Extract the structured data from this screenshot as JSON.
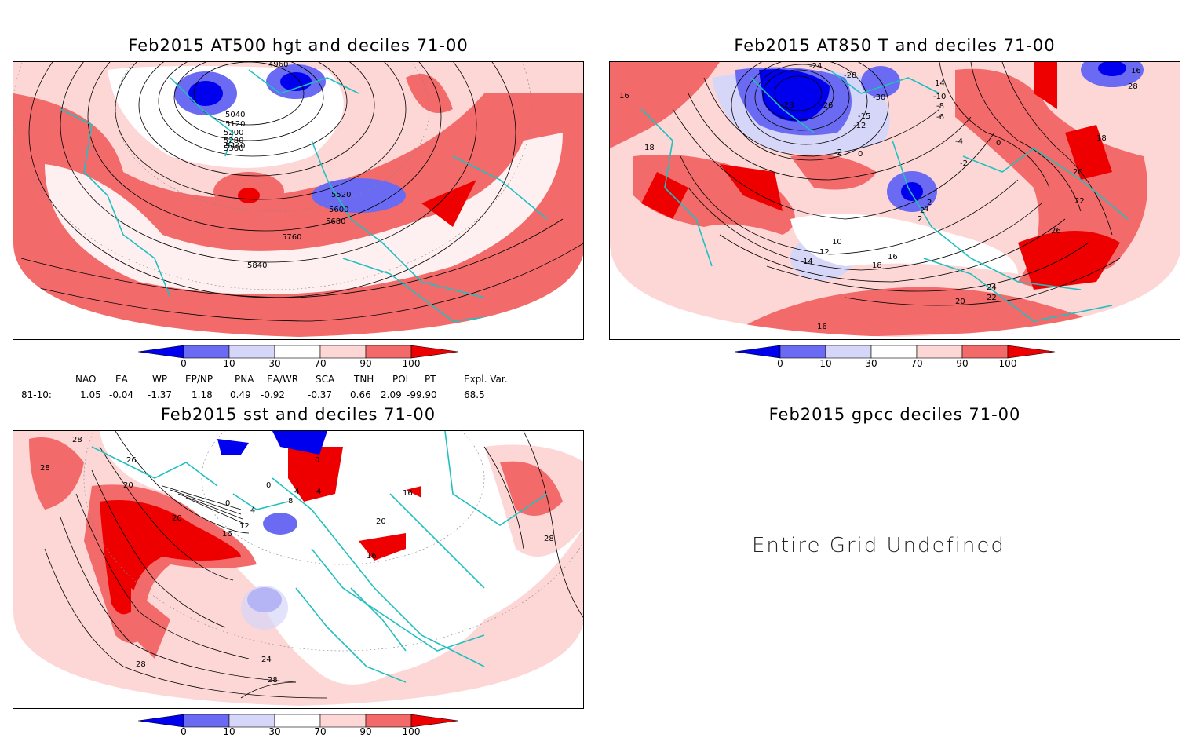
{
  "panels": {
    "hgt500": {
      "title": "Feb2015 AT500 hgt and deciles 71-00",
      "contour_labels": [
        "5040",
        "5120",
        "5200",
        "5280",
        "5360",
        "5440",
        "5520",
        "5600",
        "5680",
        "5760",
        "5840",
        "4960"
      ]
    },
    "t850": {
      "title": "Feb2015 AT850 T and deciles 71-00",
      "contour_labels": [
        "-24",
        "-26",
        "-28",
        "-28",
        "-30",
        "-15",
        "-12",
        "-2",
        "0",
        "-6",
        "-8",
        "-10",
        "14",
        "-4",
        "0",
        "-2",
        "2",
        "2",
        "2",
        "4",
        "10",
        "12",
        "14",
        "16",
        "18",
        "18",
        "16",
        "16",
        "18",
        "20",
        "22",
        "24",
        "22",
        "26",
        "20",
        "16",
        "28"
      ]
    },
    "sst": {
      "title": "Feb2015 sst and deciles 71-00",
      "contour_labels": [
        "28",
        "28",
        "26",
        "20",
        "16",
        "12",
        "4",
        "0",
        "0",
        "4",
        "8",
        "4",
        "20",
        "24",
        "28",
        "28",
        "16",
        "0",
        "20",
        "16",
        "28"
      ]
    },
    "gpcc": {
      "title": "Feb2015 gpcc deciles 71-00",
      "message": "Entire Grid Undefined"
    }
  },
  "colorbar": {
    "labels": [
      "0",
      "10",
      "30",
      "70",
      "90",
      "100"
    ],
    "colors": [
      "#0000ee",
      "#6a6af2",
      "#d6d6f8",
      "#ffffff",
      "#fdd6d6",
      "#f26a6a",
      "#ee0000"
    ]
  },
  "indices": {
    "headers": [
      "NAO",
      "EA",
      "WP",
      "EP/NP",
      "PNA",
      "EA/WR",
      "SCA",
      "TNH",
      "POL",
      "PT",
      "Expl. Var."
    ],
    "row_label": "81-10:",
    "values": [
      "1.05",
      "-0.04",
      "-1.37",
      "1.18",
      "0.49",
      "-0.92",
      "-0.37",
      "0.66",
      "2.09",
      "-99.90",
      "68.5"
    ]
  },
  "colors": {
    "coastline": "#20c0c0",
    "contour": "#000000",
    "warm": "#f26a6a",
    "cold": "#6a6af2"
  }
}
